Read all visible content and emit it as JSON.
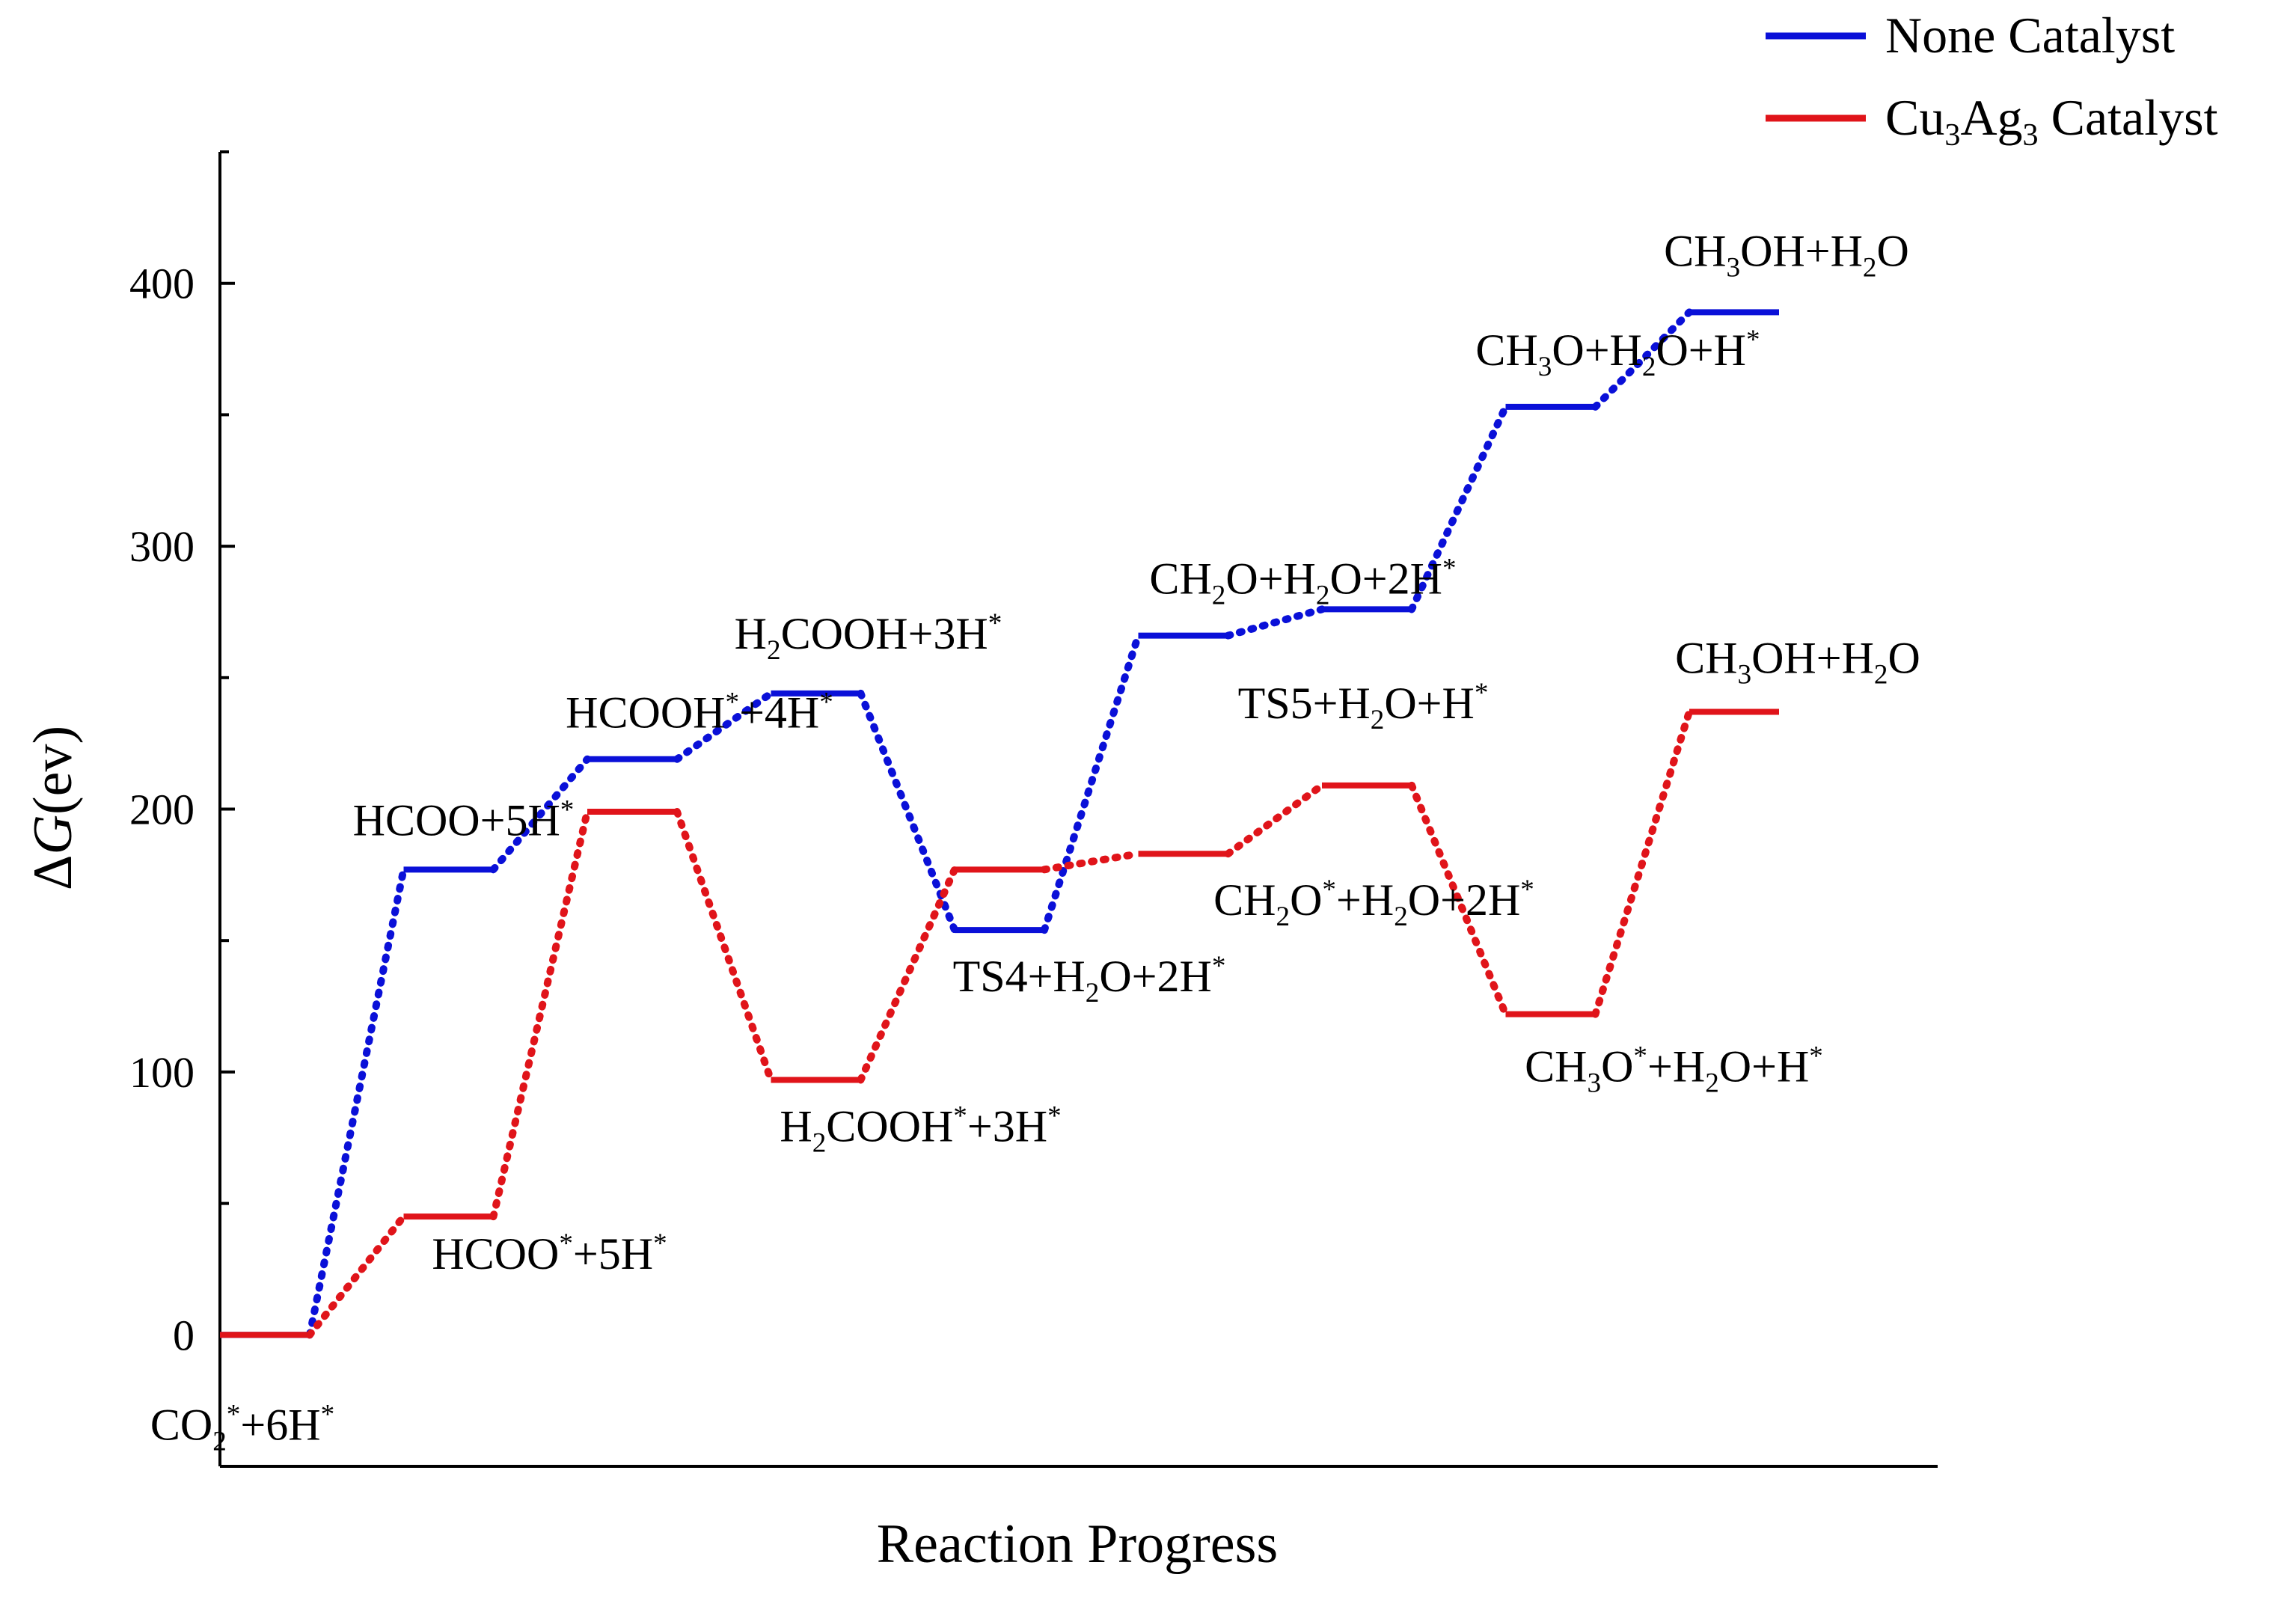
{
  "chart_data": {
    "type": "line",
    "title": "",
    "xlabel": "Reaction Progress",
    "ylabel": "ΔG(ev)",
    "ylim": [
      -50,
      450
    ],
    "yticks": [
      0,
      100,
      200,
      300,
      400
    ],
    "grid": false,
    "legend_position": "top-right",
    "series": [
      {
        "name": "None Catalyst",
        "color": "#0a10d8",
        "values": [
          0,
          177,
          219,
          244,
          154,
          266,
          276,
          353,
          389
        ],
        "labels": [
          [
            "CO",
            {
              "sub": "2"
            },
            {
              "sup": "*"
            },
            "+6H",
            {
              "sup": "*"
            }
          ],
          [
            "HCOO+5H",
            {
              "sup": "*"
            }
          ],
          [
            "HCOOH",
            {
              "sup": "*"
            },
            "+4H",
            {
              "sup": "*"
            }
          ],
          [
            "H",
            {
              "sub": "2"
            },
            "COOH+3H",
            {
              "sup": "*"
            }
          ],
          [
            "TS4+H",
            {
              "sub": "2"
            },
            "O+2H",
            {
              "sup": "*"
            }
          ],
          [
            "CH",
            {
              "sub": "2"
            },
            "O+H",
            {
              "sub": "2"
            },
            "O+2H",
            {
              "sup": "*"
            }
          ],
          [
            "TS5+H",
            {
              "sub": "2"
            },
            "O+H",
            {
              "sup": "*"
            }
          ],
          [
            "CH",
            {
              "sub": "3"
            },
            "O+H",
            {
              "sub": "2"
            },
            "O+H",
            {
              "sup": "*"
            }
          ],
          [
            "CH",
            {
              "sub": "3"
            },
            "OH+H",
            {
              "sub": "2"
            },
            "O"
          ]
        ]
      },
      {
        "name": "Cu3Ag3 Catalyst",
        "color": "#e0141a",
        "values": [
          0,
          45,
          199,
          97,
          177,
          183,
          209,
          122,
          237
        ],
        "labels": [
          [
            "CO",
            {
              "sub": "2"
            },
            {
              "sup": "*"
            },
            "+6H",
            {
              "sup": "*"
            }
          ],
          [
            "HCOO",
            {
              "sup": "*"
            },
            "+5H",
            {
              "sup": "*"
            }
          ],
          [
            "HCOOH",
            {
              "sup": "*"
            },
            "+4H",
            {
              "sup": "*"
            }
          ],
          [
            "H",
            {
              "sub": "2"
            },
            "COOH",
            {
              "sup": "*"
            },
            "+3H",
            {
              "sup": "*"
            }
          ],
          [
            "TS4+H",
            {
              "sub": "2"
            },
            "O+2H",
            {
              "sup": "*"
            }
          ],
          [
            "CH",
            {
              "sub": "2"
            },
            "O",
            {
              "sup": "*"
            },
            "+H",
            {
              "sub": "2"
            },
            "O+2H",
            {
              "sup": "*"
            }
          ],
          [
            "TS5+H",
            {
              "sub": "2"
            },
            "O+H",
            {
              "sup": "*"
            }
          ],
          [
            "CH",
            {
              "sub": "3"
            },
            "O",
            {
              "sup": "*"
            },
            "+H",
            {
              "sub": "2"
            },
            "O+H",
            {
              "sup": "*"
            }
          ],
          [
            "CH",
            {
              "sub": "3"
            },
            "OH+H",
            {
              "sub": "2"
            },
            "O"
          ]
        ]
      }
    ],
    "legend": [
      {
        "name": "None Catalyst",
        "parts": [
          "None Catalyst"
        ]
      },
      {
        "name": "Cu3Ag3 Catalyst",
        "parts": [
          "Cu",
          {
            "sub": "3"
          },
          "Ag",
          {
            "sub": "3"
          },
          " Catalyst"
        ]
      }
    ],
    "annotations": [
      {
        "series": 1,
        "step": 0,
        "parts": [
          "CO",
          {
            "sub": "2"
          },
          {
            "sup": "*"
          },
          "+6H",
          {
            "sup": "*"
          }
        ]
      },
      {
        "series": 0,
        "step": 1,
        "parts": [
          "HCOO+5H",
          {
            "sup": "*"
          }
        ]
      },
      {
        "series": 1,
        "step": 1,
        "parts": [
          "HCOO",
          {
            "sup": "*"
          },
          "+5H",
          {
            "sup": "*"
          }
        ]
      },
      {
        "series": 0,
        "step": 2,
        "parts": [
          "HCOOH",
          {
            "sup": "*"
          },
          "+4H",
          {
            "sup": "*"
          }
        ]
      },
      {
        "series": 0,
        "step": 3,
        "parts": [
          "H",
          {
            "sub": "2"
          },
          "COOH+3H",
          {
            "sup": "*"
          }
        ]
      },
      {
        "series": 1,
        "step": 3,
        "parts": [
          "H",
          {
            "sub": "2"
          },
          "COOH",
          {
            "sup": "*"
          },
          "+3H",
          {
            "sup": "*"
          }
        ]
      },
      {
        "series": 0,
        "step": 4,
        "parts": [
          "TS4+H",
          {
            "sub": "2"
          },
          "O+2H",
          {
            "sup": "*"
          }
        ]
      },
      {
        "series": 0,
        "step": 5,
        "parts": [
          "CH",
          {
            "sub": "2"
          },
          "O+H",
          {
            "sub": "2"
          },
          "O+2H",
          {
            "sup": "*"
          }
        ]
      },
      {
        "series": 1,
        "step": 5,
        "parts": [
          "CH",
          {
            "sub": "2"
          },
          "O",
          {
            "sup": "*"
          },
          "+H",
          {
            "sub": "2"
          },
          "O+2H",
          {
            "sup": "*"
          }
        ]
      },
      {
        "series": 1,
        "step": 6,
        "parts": [
          "TS5+H",
          {
            "sub": "2"
          },
          "O+H",
          {
            "sup": "*"
          }
        ]
      },
      {
        "series": 0,
        "step": 7,
        "parts": [
          "CH",
          {
            "sub": "3"
          },
          "O+H",
          {
            "sub": "2"
          },
          "O+H",
          {
            "sup": "*"
          }
        ]
      },
      {
        "series": 1,
        "step": 7,
        "parts": [
          "CH",
          {
            "sub": "3"
          },
          "O",
          {
            "sup": "*"
          },
          "+H",
          {
            "sub": "2"
          },
          "O+H",
          {
            "sup": "*"
          }
        ]
      },
      {
        "series": 0,
        "step": 8,
        "parts": [
          "CH",
          {
            "sub": "3"
          },
          "OH+H",
          {
            "sub": "2"
          },
          "O"
        ]
      },
      {
        "series": 1,
        "step": 8,
        "parts": [
          "CH",
          {
            "sub": "3"
          },
          "OH+H",
          {
            "sub": "2"
          },
          "O"
        ]
      }
    ]
  }
}
